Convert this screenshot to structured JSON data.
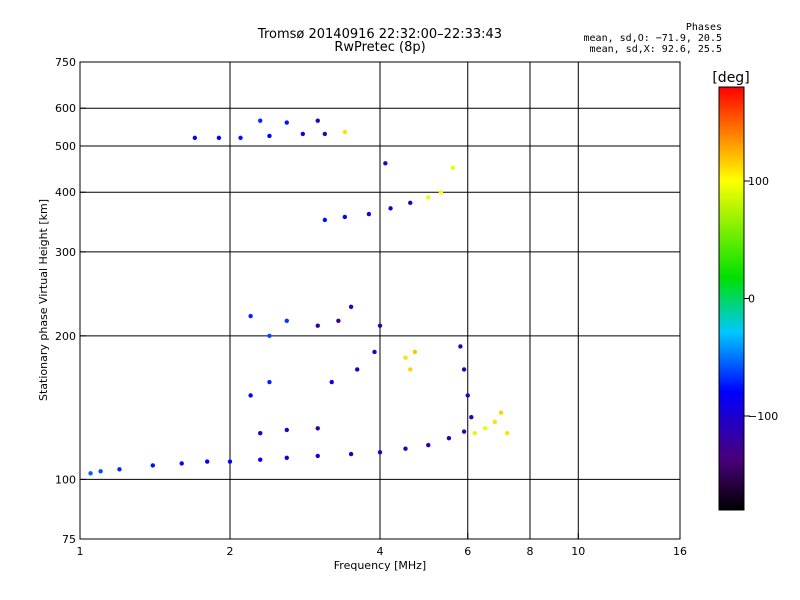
{
  "title": "Tromsø 20140916 22:32:00–22:33:43",
  "subtitle": "RwPretec (8p)",
  "phases": {
    "heading": "Phases",
    "line_o": "mean, sd,O: −71.9, 20.5",
    "line_x": "mean, sd,X:  92.6, 25.5"
  },
  "chart_data": {
    "type": "scatter",
    "xlabel": "Frequency [MHz]",
    "ylabel": "Stationary phase Virtual Height [km]",
    "xscale": "log",
    "yscale": "log",
    "xlim": [
      1,
      16
    ],
    "ylim": [
      75,
      750
    ],
    "x_ticks": [
      1,
      2,
      4,
      6,
      8,
      10,
      16
    ],
    "x_tick_labels": [
      "1",
      "2",
      "4",
      "6",
      "8",
      "10",
      "16"
    ],
    "x_grid": [
      2,
      4,
      6,
      8,
      10
    ],
    "y_ticks": [
      75,
      100,
      200,
      300,
      400,
      500,
      600,
      750
    ],
    "y_tick_labels": [
      "75",
      "100",
      "200",
      "300",
      "400",
      "500",
      "600",
      "750"
    ],
    "y_grid": [
      100,
      200,
      300,
      400,
      500,
      600
    ],
    "grid": true,
    "colorbar": {
      "label": "[deg]",
      "range": [
        -180,
        180
      ],
      "ticks": [
        100,
        0,
        -100
      ],
      "tick_labels": [
        "100",
        "0",
        "−100"
      ],
      "colormap": "rainbow (black–purple–blue–cyan–green–yellow–red)"
    },
    "series": [
      {
        "description": "O-mode lower trace",
        "points": [
          {
            "x": 1.05,
            "y": 103,
            "c": -55
          },
          {
            "x": 1.1,
            "y": 104,
            "c": -60
          },
          {
            "x": 1.2,
            "y": 105,
            "c": -70
          },
          {
            "x": 1.4,
            "y": 107,
            "c": -75
          },
          {
            "x": 1.6,
            "y": 108,
            "c": -78
          },
          {
            "x": 1.8,
            "y": 109,
            "c": -80
          },
          {
            "x": 2.0,
            "y": 109,
            "c": -82
          },
          {
            "x": 2.3,
            "y": 110,
            "c": -85
          },
          {
            "x": 2.6,
            "y": 111,
            "c": -90
          },
          {
            "x": 3.0,
            "y": 112,
            "c": -95
          },
          {
            "x": 3.5,
            "y": 113,
            "c": -100
          },
          {
            "x": 4.0,
            "y": 114,
            "c": -105
          },
          {
            "x": 4.5,
            "y": 116,
            "c": -110
          },
          {
            "x": 5.0,
            "y": 118,
            "c": -112
          },
          {
            "x": 5.5,
            "y": 122,
            "c": -115
          },
          {
            "x": 5.9,
            "y": 126,
            "c": -118
          },
          {
            "x": 6.1,
            "y": 135,
            "c": -115
          },
          {
            "x": 6.0,
            "y": 150,
            "c": -110
          },
          {
            "x": 5.9,
            "y": 170,
            "c": -110
          },
          {
            "x": 5.8,
            "y": 190,
            "c": -105
          }
        ]
      },
      {
        "description": "X-mode lower trace",
        "points": [
          {
            "x": 2.3,
            "y": 125,
            "c": -100
          },
          {
            "x": 2.6,
            "y": 127,
            "c": -110
          },
          {
            "x": 3.0,
            "y": 128,
            "c": -115
          },
          {
            "x": 6.2,
            "y": 125,
            "c": 90
          },
          {
            "x": 6.5,
            "y": 128,
            "c": 95
          },
          {
            "x": 6.8,
            "y": 132,
            "c": 110
          },
          {
            "x": 7.0,
            "y": 138,
            "c": 115
          },
          {
            "x": 7.2,
            "y": 125,
            "c": 110
          }
        ]
      },
      {
        "description": "F-region trace",
        "points": [
          {
            "x": 2.2,
            "y": 150,
            "c": -80
          },
          {
            "x": 2.4,
            "y": 160,
            "c": -70
          },
          {
            "x": 3.2,
            "y": 160,
            "c": -90
          },
          {
            "x": 3.6,
            "y": 170,
            "c": -95
          },
          {
            "x": 3.9,
            "y": 185,
            "c": -100
          },
          {
            "x": 4.0,
            "y": 210,
            "c": -105
          },
          {
            "x": 3.0,
            "y": 210,
            "c": -120
          },
          {
            "x": 3.3,
            "y": 215,
            "c": -125
          },
          {
            "x": 3.5,
            "y": 230,
            "c": -110
          },
          {
            "x": 2.4,
            "y": 200,
            "c": -60
          },
          {
            "x": 2.6,
            "y": 215,
            "c": -65
          },
          {
            "x": 2.2,
            "y": 220,
            "c": -70
          },
          {
            "x": 4.5,
            "y": 180,
            "c": 110
          },
          {
            "x": 4.6,
            "y": 170,
            "c": 115
          },
          {
            "x": 4.7,
            "y": 185,
            "c": 120
          },
          {
            "x": 3.1,
            "y": 350,
            "c": -75
          },
          {
            "x": 3.4,
            "y": 355,
            "c": -80
          },
          {
            "x": 3.8,
            "y": 360,
            "c": -90
          },
          {
            "x": 4.2,
            "y": 370,
            "c": -100
          },
          {
            "x": 4.6,
            "y": 380,
            "c": -110
          },
          {
            "x": 5.0,
            "y": 390,
            "c": 95
          },
          {
            "x": 5.3,
            "y": 400,
            "c": 100
          },
          {
            "x": 5.6,
            "y": 450,
            "c": 95
          },
          {
            "x": 4.1,
            "y": 460,
            "c": -110
          }
        ]
      },
      {
        "description": "Upper trace",
        "points": [
          {
            "x": 1.7,
            "y": 520,
            "c": -85
          },
          {
            "x": 1.9,
            "y": 520,
            "c": -80
          },
          {
            "x": 2.1,
            "y": 520,
            "c": -75
          },
          {
            "x": 2.4,
            "y": 525,
            "c": -80
          },
          {
            "x": 2.8,
            "y": 530,
            "c": -90
          },
          {
            "x": 3.1,
            "y": 530,
            "c": -120
          },
          {
            "x": 3.4,
            "y": 535,
            "c": 110
          },
          {
            "x": 2.3,
            "y": 565,
            "c": -70
          },
          {
            "x": 2.6,
            "y": 560,
            "c": -75
          },
          {
            "x": 3.0,
            "y": 565,
            "c": -110
          }
        ]
      }
    ]
  }
}
